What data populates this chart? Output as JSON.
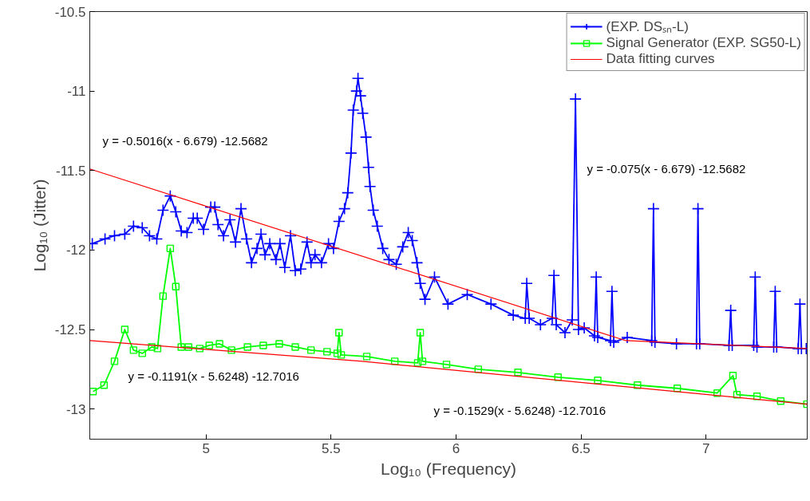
{
  "chart_data": {
    "type": "line",
    "xlabel": "Log₁₀ (Frequency)",
    "ylabel": "Log₁₀ (Jitter)",
    "xlim": [
      4.535,
      7.405
    ],
    "ylim": [
      -13.19,
      -10.5
    ],
    "xticks": [
      5,
      5.5,
      6,
      6.5,
      7
    ],
    "yticks": [
      -10.5,
      -11,
      -11.5,
      -12,
      -12.5,
      -13
    ],
    "grid": false,
    "legend": "top right",
    "series": [
      {
        "name": "(EXP. DSₛₙ-L)",
        "color": "#0000ff",
        "marker": "cross",
        "x": [
          4.545,
          4.596,
          4.634,
          4.675,
          4.71,
          4.745,
          4.774,
          4.803,
          4.828,
          4.857,
          4.879,
          4.901,
          4.924,
          4.949,
          4.965,
          4.99,
          5.019,
          5.035,
          5.048,
          5.07,
          5.096,
          5.118,
          5.14,
          5.162,
          5.182,
          5.204,
          5.22,
          5.236,
          5.255,
          5.28,
          5.296,
          5.315,
          5.338,
          5.357,
          5.379,
          5.404,
          5.42,
          5.436,
          5.462,
          5.49,
          5.51,
          5.532,
          5.554,
          5.567,
          5.58,
          5.589,
          5.602,
          5.608,
          5.618,
          5.627,
          5.64,
          5.65,
          5.656,
          5.669,
          5.685,
          5.707,
          5.732,
          5.761,
          5.787,
          5.809,
          5.825,
          5.844,
          5.857,
          5.876,
          5.914,
          5.968,
          6.045,
          6.14,
          6.229,
          6.277,
          6.283,
          6.293,
          6.338,
          6.385,
          6.392,
          6.401,
          6.436,
          6.465,
          6.478,
          6.49,
          6.513,
          6.554,
          6.561,
          6.567,
          6.618,
          6.624,
          6.631,
          6.685,
          6.783,
          6.79,
          6.796,
          6.882,
          6.962,
          6.968,
          6.975,
          7.092,
          7.099,
          7.105,
          7.191,
          7.197,
          7.204,
          7.271,
          7.277,
          7.283,
          7.369,
          7.376,
          7.382,
          7.401
        ],
        "values": [
          -11.96,
          -11.93,
          -11.91,
          -11.9,
          -11.85,
          -11.86,
          -11.91,
          -11.93,
          -11.75,
          -11.66,
          -11.76,
          -11.88,
          -11.89,
          -11.8,
          -11.8,
          -11.87,
          -11.73,
          -11.73,
          -11.84,
          -11.91,
          -11.81,
          -11.95,
          -11.74,
          -11.93,
          -12.08,
          -11.99,
          -11.9,
          -12.03,
          -11.96,
          -12.06,
          -11.96,
          -12.11,
          -11.91,
          -12.13,
          -12.12,
          -11.95,
          -12.08,
          -12.03,
          -12.08,
          -11.96,
          -11.99,
          -11.82,
          -11.74,
          -11.64,
          -11.39,
          -11.12,
          -11.0,
          -10.92,
          -11.03,
          -11.14,
          -11.29,
          -11.48,
          -11.6,
          -11.75,
          -11.85,
          -11.99,
          -12.06,
          -12.09,
          -11.98,
          -11.89,
          -11.94,
          -12.08,
          -12.21,
          -12.31,
          -12.17,
          -12.34,
          -12.28,
          -12.34,
          -12.41,
          -12.43,
          -12.21,
          -12.43,
          -12.47,
          -12.43,
          -12.16,
          -12.47,
          -12.52,
          -12.44,
          -11.05,
          -12.5,
          -12.49,
          -12.54,
          -12.17,
          -12.55,
          -12.57,
          -12.26,
          -12.58,
          -12.55,
          -12.57,
          -11.74,
          -12.58,
          -12.59,
          -12.59,
          -11.74,
          -12.59,
          -12.6,
          -12.38,
          -12.6,
          -12.6,
          -12.17,
          -12.61,
          -12.61,
          -12.26,
          -12.61,
          -12.62,
          -12.34,
          -12.62,
          -12.62
        ]
      },
      {
        "name": "Signal Generator (EXP. SG50-L)",
        "color": "#00ff00",
        "marker": "square",
        "x": [
          4.548,
          4.592,
          4.634,
          4.675,
          4.71,
          4.745,
          4.783,
          4.806,
          4.828,
          4.857,
          4.879,
          4.901,
          4.93,
          4.975,
          5.013,
          5.054,
          5.102,
          5.166,
          5.229,
          5.293,
          5.357,
          5.42,
          5.484,
          5.525,
          5.532,
          5.541,
          5.643,
          5.755,
          5.847,
          5.857,
          5.866,
          5.962,
          6.089,
          6.248,
          6.408,
          6.567,
          6.726,
          6.885,
          7.045,
          7.108,
          7.124,
          7.204,
          7.299,
          7.404
        ],
        "values": [
          -12.89,
          -12.85,
          -12.7,
          -12.5,
          -12.63,
          -12.65,
          -12.61,
          -12.62,
          -12.29,
          -11.99,
          -12.23,
          -12.61,
          -12.61,
          -12.62,
          -12.6,
          -12.59,
          -12.63,
          -12.61,
          -12.6,
          -12.59,
          -12.61,
          -12.63,
          -12.64,
          -12.65,
          -12.52,
          -12.66,
          -12.67,
          -12.7,
          -12.71,
          -12.52,
          -12.7,
          -12.72,
          -12.75,
          -12.77,
          -12.8,
          -12.82,
          -12.85,
          -12.87,
          -12.9,
          -12.79,
          -12.91,
          -12.92,
          -12.95,
          -12.97
        ]
      },
      {
        "name": "Data fitting curves",
        "color": "#ff0000",
        "marker": "none",
        "x": [
          4.535,
          6.679,
          7.405
        ],
        "values": [
          -11.49,
          -12.57,
          -12.62
        ]
      },
      {
        "color": "#ff0000",
        "marker": "none",
        "x": [
          4.535,
          5.6248,
          7.405
        ],
        "values": [
          -12.57,
          -12.7,
          -12.97
        ]
      }
    ],
    "annotations": [
      "y = -0.5016(x - 6.679) -12.5682",
      "y = -0.075(x - 6.679) -12.5682",
      "y = -0.1191(x - 5.6248) -12.7016",
      "y = -0.1529(x - 5.6248) -12.7016"
    ]
  }
}
